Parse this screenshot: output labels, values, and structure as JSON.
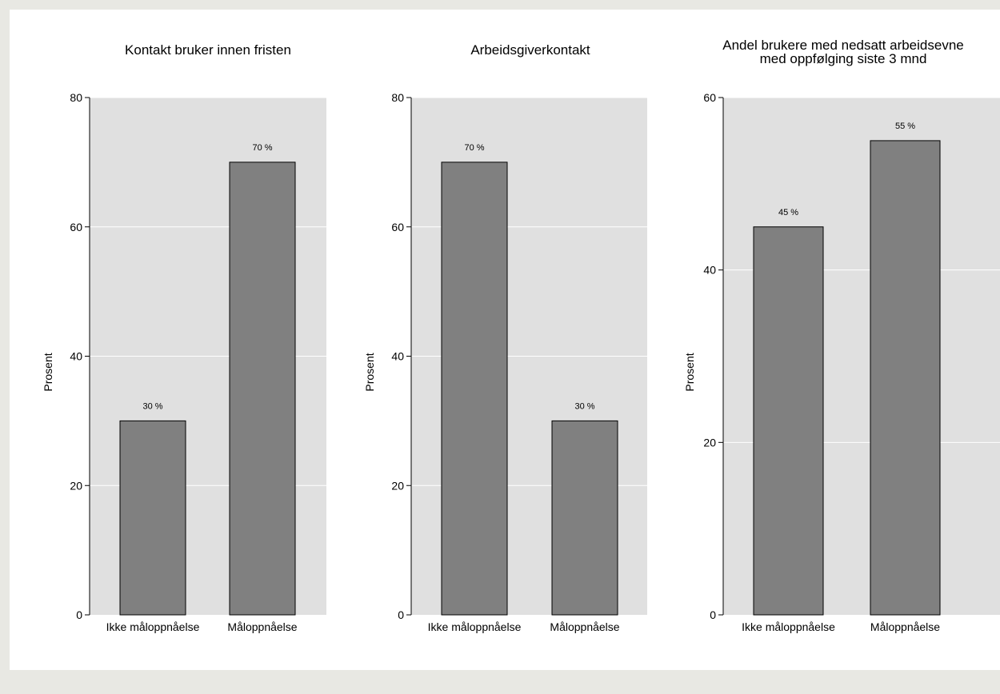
{
  "colors": {
    "page_background": "#e8e8e3",
    "figure_background": "#ffffff",
    "plot_background": "#e0e0e0",
    "gridline": "#ffffff",
    "bar_fill": "#808080",
    "bar_stroke": "#000000"
  },
  "chart_data": [
    {
      "type": "bar",
      "title": [
        "Kontakt bruker innen fristen"
      ],
      "ylabel": "Prosent",
      "xlabel": "",
      "ylim": [
        0,
        80
      ],
      "yticks": [
        0,
        20,
        40,
        60,
        80
      ],
      "grid": true,
      "categories": [
        "Ikke måloppnåelse",
        "Måloppnåelse"
      ],
      "values": [
        30,
        70
      ],
      "data_labels": [
        "30 %",
        "70 %"
      ]
    },
    {
      "type": "bar",
      "title": [
        "Arbeidsgiverkontakt"
      ],
      "ylabel": "Prosent",
      "xlabel": "",
      "ylim": [
        0,
        80
      ],
      "yticks": [
        0,
        20,
        40,
        60,
        80
      ],
      "grid": true,
      "categories": [
        "Ikke måloppnåelse",
        "Måloppnåelse"
      ],
      "values": [
        70,
        30
      ],
      "data_labels": [
        "70 %",
        "30 %"
      ]
    },
    {
      "type": "bar",
      "title": [
        "Andel brukere med nedsatt arbeidsevne",
        "med oppfølging siste 3 mnd"
      ],
      "ylabel": "Prosent",
      "xlabel": "",
      "ylim": [
        0,
        60
      ],
      "yticks": [
        0,
        20,
        40,
        60
      ],
      "grid": true,
      "categories": [
        "Ikke måloppnåelse",
        "Måloppnåelse"
      ],
      "values": [
        45,
        55
      ],
      "data_labels": [
        "45 %",
        "55 %"
      ]
    }
  ]
}
